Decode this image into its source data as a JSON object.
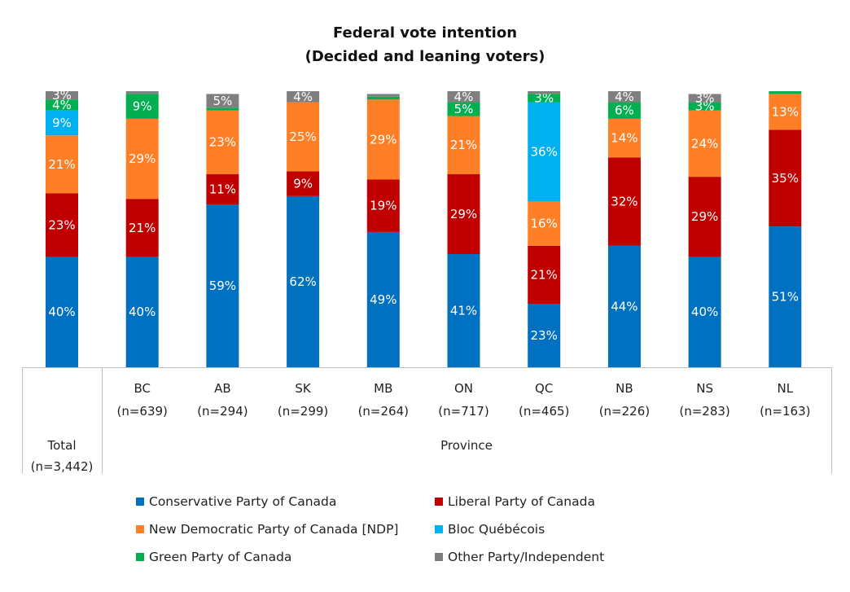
{
  "chart_data": {
    "type": "bar",
    "stacked": true,
    "title": "Federal vote intention",
    "subtitle": "(Decided and leaning voters)",
    "ylim": [
      0,
      100
    ],
    "grid": false,
    "legend_position": "bottom",
    "xlabel": "Province",
    "categories": [
      {
        "name": "Total",
        "n": "(n=3,442)"
      },
      {
        "name": "BC",
        "n": "(n=639)"
      },
      {
        "name": "AB",
        "n": "(n=294)"
      },
      {
        "name": "SK",
        "n": "(n=299)"
      },
      {
        "name": "MB",
        "n": "(n=264)"
      },
      {
        "name": "ON",
        "n": "(n=717)"
      },
      {
        "name": "QC",
        "n": "(n=465)"
      },
      {
        "name": "NB",
        "n": "(n=226)"
      },
      {
        "name": "NS",
        "n": "(n=283)"
      },
      {
        "name": "NL",
        "n": "(n=163)"
      }
    ],
    "series": [
      {
        "name": "Conservative Party of Canada",
        "color": "#0070C0",
        "values": [
          40,
          40,
          59,
          62,
          49,
          41,
          23,
          44,
          40,
          51
        ],
        "labels": [
          "40%",
          "40%",
          "59%",
          "62%",
          "49%",
          "41%",
          "23%",
          "44%",
          "40%",
          "51%"
        ]
      },
      {
        "name": "Liberal Party of Canada",
        "color": "#C00000",
        "values": [
          23,
          21,
          11,
          9,
          19,
          29,
          21,
          32,
          29,
          35
        ],
        "labels": [
          "23%",
          "21%",
          "11%",
          "9%",
          "19%",
          "29%",
          "21%",
          "32%",
          "29%",
          "35%"
        ]
      },
      {
        "name": "New Democratic Party of Canada [NDP]",
        "color": "#FF7F27",
        "values": [
          21,
          29,
          23,
          25,
          29,
          21,
          16,
          14,
          24,
          13
        ],
        "labels": [
          "21%",
          "29%",
          "23%",
          "25%",
          "29%",
          "21%",
          "16%",
          "14%",
          "24%",
          "13%"
        ]
      },
      {
        "name": "Bloc Québécois",
        "color": "#00B0F0",
        "values": [
          9,
          0,
          0,
          0,
          0,
          0,
          36,
          0,
          0,
          0
        ],
        "labels": [
          "9%",
          "",
          "",
          "",
          "",
          "",
          "36%",
          "",
          "",
          ""
        ]
      },
      {
        "name": "Green Party of Canada",
        "color": "#00B050",
        "values": [
          4,
          9,
          1,
          0,
          1,
          5,
          3,
          6,
          3,
          1
        ],
        "labels": [
          "4%",
          "9%",
          "",
          "",
          "",
          "5%",
          "3%",
          "6%",
          "3%",
          ""
        ]
      },
      {
        "name": "Other Party/Independent",
        "color": "#7F7F7F",
        "values": [
          3,
          1,
          5,
          4,
          1,
          4,
          1,
          4,
          3,
          0
        ],
        "labels": [
          "3%",
          "",
          "5%",
          "4%",
          "",
          "4%",
          "",
          "4%",
          "3%",
          ""
        ]
      }
    ]
  }
}
